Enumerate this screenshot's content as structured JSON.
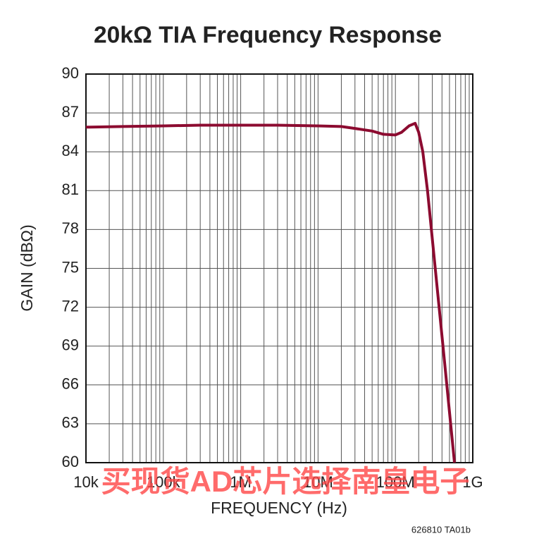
{
  "chart_data": {
    "type": "line",
    "title": "20kΩ TIA Frequency Response",
    "x_label": "FREQUENCY (Hz)",
    "y_label": "GAIN (dBΩ)",
    "note": "626810 TA01b",
    "watermark": "买现货AD芯片选择南皇电子",
    "x_log": true,
    "grid": true,
    "color": "#8c0b30",
    "x": [
      10000,
      30000,
      100000,
      300000,
      1000000,
      3000000,
      10000000,
      20000000,
      30000000,
      50000000,
      70000000,
      100000000,
      120000000,
      150000000,
      180000000,
      200000000,
      226000000,
      260000000,
      340000000,
      420000000,
      580000000
    ],
    "values": [
      85.9,
      85.95,
      86.0,
      86.05,
      86.05,
      86.05,
      86.0,
      85.95,
      85.8,
      85.6,
      85.35,
      85.3,
      85.5,
      86.0,
      86.2,
      85.5,
      84,
      81,
      74,
      68.5,
      60
    ],
    "xlim": [
      10000,
      1000000000
    ],
    "ylim": [
      60,
      90
    ],
    "xticks": [
      {
        "value": 10000,
        "label": "10k"
      },
      {
        "value": 100000,
        "label": "100k"
      },
      {
        "value": 1000000,
        "label": "1M"
      },
      {
        "value": 10000000,
        "label": "10M"
      },
      {
        "value": 100000000,
        "label": "100M"
      },
      {
        "value": 1000000000,
        "label": "1G"
      }
    ],
    "x_minor_grid": [
      20000,
      30000,
      40000,
      50000,
      60000,
      70000,
      80000,
      90000,
      200000,
      300000,
      400000,
      500000,
      600000,
      700000,
      800000,
      900000,
      2000000,
      3000000,
      4000000,
      5000000,
      6000000,
      7000000,
      8000000,
      9000000,
      20000000,
      30000000,
      40000000,
      50000000,
      60000000,
      70000000,
      80000000,
      90000000,
      200000000,
      300000000,
      400000000,
      500000000,
      600000000,
      700000000,
      800000000,
      900000000
    ],
    "yticks": [
      60,
      63,
      66,
      69,
      72,
      75,
      78,
      81,
      84,
      87,
      90
    ]
  }
}
